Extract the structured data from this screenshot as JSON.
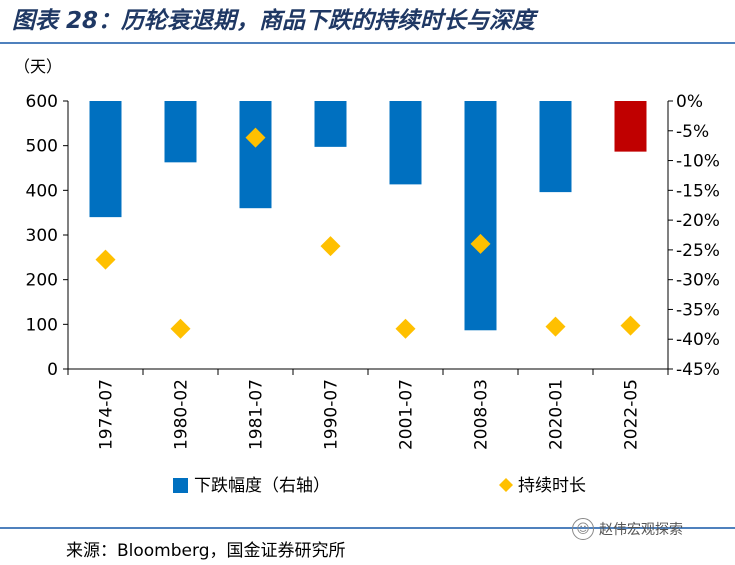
{
  "header": {
    "title": "图表 28：历轮衰退期，商品下跌的持续时长与深度"
  },
  "chart_data": {
    "type": "bar",
    "categories": [
      "1974-07",
      "1980-02",
      "1981-07",
      "1990-07",
      "2001-07",
      "2008-03",
      "2020-01",
      "2022-05"
    ],
    "series": [
      {
        "name": "下跌幅度（右轴）",
        "type": "bar",
        "axis": "right",
        "color": "#0070c0",
        "highlight": {
          "index": 7,
          "color": "#c00000"
        },
        "values": [
          -19.5,
          -10.3,
          -18.0,
          -7.7,
          -14.0,
          -38.5,
          -15.3,
          -8.5
        ]
      },
      {
        "name": "持续时长",
        "type": "scatter",
        "marker": "diamond",
        "axis": "left",
        "color": "#ffc000",
        "values": [
          245,
          90,
          518,
          275,
          90,
          280,
          95,
          97
        ]
      }
    ],
    "left_axis": {
      "unit_label": "（天）",
      "ylim": [
        0,
        600
      ],
      "ticks": [
        "600",
        "500",
        "400",
        "300",
        "200",
        "100",
        "0"
      ]
    },
    "right_axis": {
      "ylim": [
        -45,
        0
      ],
      "ticks": [
        "0%",
        "-5%",
        "-10%",
        "-15%",
        "-20%",
        "-25%",
        "-30%",
        "-35%",
        "-40%",
        "-45%"
      ]
    },
    "legend_position": "bottom",
    "grid": false
  },
  "footer": {
    "source": "来源：Bloomberg，国金证券研究所",
    "watermark": "赵伟宏观探索"
  }
}
